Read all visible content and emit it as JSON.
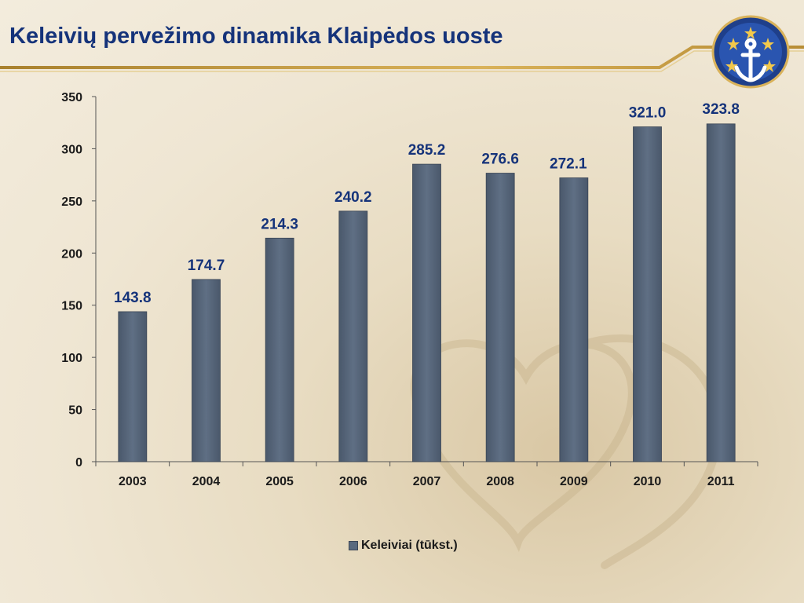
{
  "title": "Keleivių pervežimo dinamika Klaipėdos uoste",
  "colors": {
    "title": "#15337a",
    "bar": "#56667a",
    "label": "#15337a",
    "accent": "#c9a24a"
  },
  "logo": {
    "icon": "anchor-stars-icon"
  },
  "chart_data": {
    "type": "bar",
    "categories": [
      "2003",
      "2004",
      "2005",
      "2006",
      "2007",
      "2008",
      "2009",
      "2010",
      "2011"
    ],
    "series": [
      {
        "name": "Keleiviai (tūkst.)",
        "values": [
          143.8,
          174.7,
          214.3,
          240.2,
          285.2,
          276.6,
          272.1,
          321.0,
          323.8
        ]
      }
    ],
    "data_labels": [
      "143.8",
      "174.7",
      "214.3",
      "240.2",
      "285.2",
      "276.6",
      "272.1",
      "321.0",
      "323.8"
    ],
    "yticks": [
      "0",
      "50",
      "100",
      "150",
      "200",
      "250",
      "300",
      "350"
    ],
    "ylim": [
      0,
      350
    ],
    "grid": false,
    "legend": "bottom"
  }
}
